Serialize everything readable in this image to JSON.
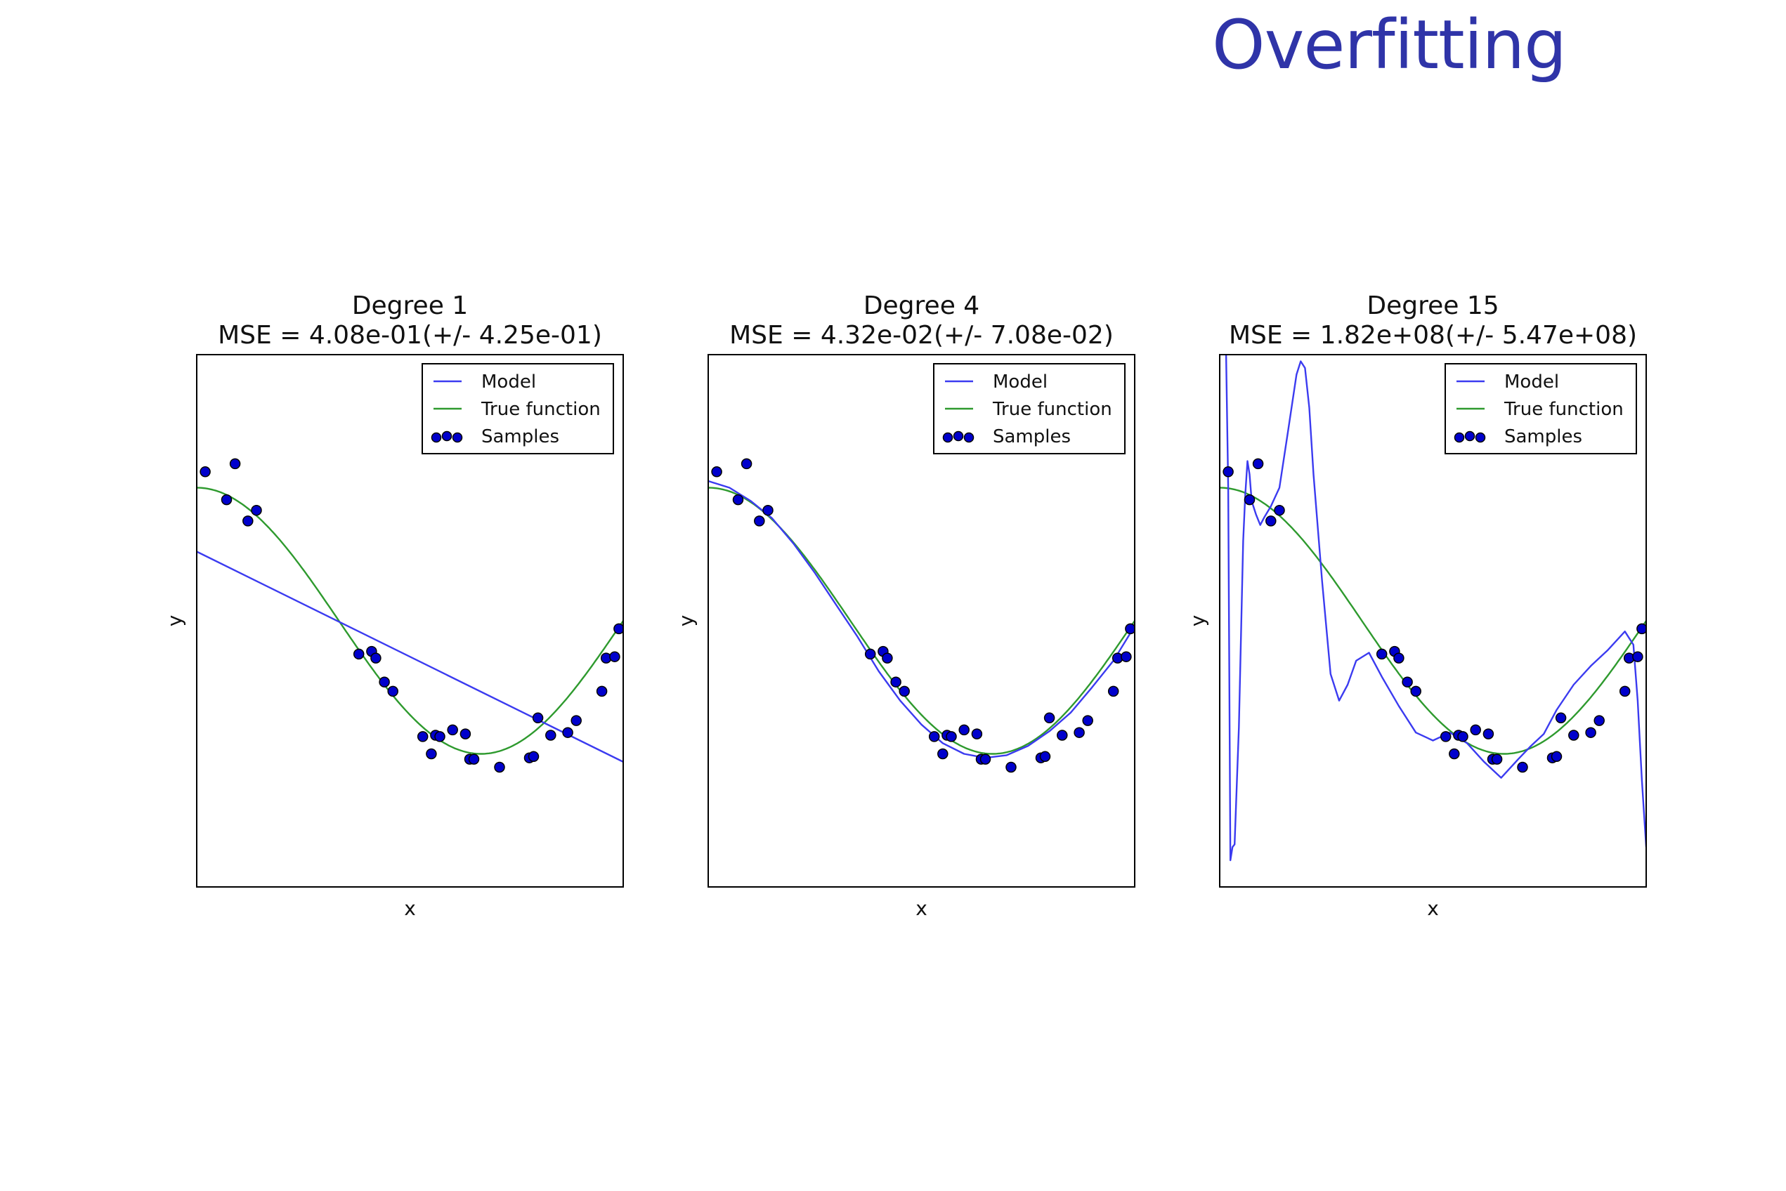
{
  "slide": {
    "title": "Overfitting"
  },
  "colors": {
    "model": "#3b3bf0",
    "true_function": "#2e9a2e",
    "sample_fill": "#0000cc",
    "sample_edge": "#000000",
    "title": "#2f34a8"
  },
  "chart_data": [
    {
      "type": "line",
      "title": "Degree 1",
      "subtitle": "MSE = 4.08e-01(+/- 4.25e-01)",
      "xlabel": "x",
      "ylabel": "y",
      "xlim": [
        0,
        1
      ],
      "ylim": [
        -2,
        2
      ],
      "legend": {
        "placement": "top-right",
        "entries": [
          "Model",
          "True function",
          "Samples"
        ]
      },
      "model": {
        "name": "Model",
        "x": [
          0,
          1
        ],
        "y": [
          0.52,
          -1.06
        ]
      },
      "true_function": {
        "name": "True function",
        "formula": "cos(1.5*pi*x)"
      },
      "samples": {
        "name": "Samples",
        "x": [
          0.02,
          0.07,
          0.09,
          0.12,
          0.14,
          0.38,
          0.41,
          0.42,
          0.44,
          0.46,
          0.53,
          0.55,
          0.56,
          0.57,
          0.6,
          0.63,
          0.64,
          0.65,
          0.71,
          0.78,
          0.79,
          0.8,
          0.83,
          0.87,
          0.89,
          0.95,
          0.96,
          0.98,
          0.99
        ],
        "y": [
          1.12,
          0.91,
          1.18,
          0.75,
          0.83,
          -0.25,
          -0.23,
          -0.28,
          -0.46,
          -0.53,
          -0.87,
          -1.0,
          -0.86,
          -0.87,
          -0.82,
          -0.85,
          -1.04,
          -1.04,
          -1.1,
          -1.03,
          -1.02,
          -0.73,
          -0.86,
          -0.84,
          -0.75,
          -0.53,
          -0.28,
          -0.27,
          -0.06
        ]
      }
    },
    {
      "type": "line",
      "title": "Degree 4",
      "subtitle": "MSE = 4.32e-02(+/- 7.08e-02)",
      "xlabel": "x",
      "ylabel": "y",
      "xlim": [
        0,
        1
      ],
      "ylim": [
        -2,
        2
      ],
      "legend": {
        "placement": "top-right",
        "entries": [
          "Model",
          "True function",
          "Samples"
        ]
      },
      "model": {
        "name": "Model",
        "x": [
          0,
          0.05,
          0.1,
          0.15,
          0.2,
          0.25,
          0.3,
          0.35,
          0.4,
          0.45,
          0.5,
          0.55,
          0.6,
          0.65,
          0.7,
          0.75,
          0.8,
          0.85,
          0.9,
          0.95,
          1.0
        ],
        "y": [
          1.05,
          1.0,
          0.9,
          0.77,
          0.58,
          0.36,
          0.12,
          -0.12,
          -0.38,
          -0.6,
          -0.78,
          -0.92,
          -1.0,
          -1.03,
          -1.01,
          -0.94,
          -0.83,
          -0.69,
          -0.5,
          -0.3,
          -0.04
        ]
      },
      "true_function": {
        "name": "True function",
        "formula": "cos(1.5*pi*x)"
      },
      "samples": {
        "name": "Samples",
        "x": [
          0.02,
          0.07,
          0.09,
          0.12,
          0.14,
          0.38,
          0.41,
          0.42,
          0.44,
          0.46,
          0.53,
          0.55,
          0.56,
          0.57,
          0.6,
          0.63,
          0.64,
          0.65,
          0.71,
          0.78,
          0.79,
          0.8,
          0.83,
          0.87,
          0.89,
          0.95,
          0.96,
          0.98,
          0.99
        ],
        "y": [
          1.12,
          0.91,
          1.18,
          0.75,
          0.83,
          -0.25,
          -0.23,
          -0.28,
          -0.46,
          -0.53,
          -0.87,
          -1.0,
          -0.86,
          -0.87,
          -0.82,
          -0.85,
          -1.04,
          -1.04,
          -1.1,
          -1.03,
          -1.02,
          -0.73,
          -0.86,
          -0.84,
          -0.75,
          -0.53,
          -0.28,
          -0.27,
          -0.06
        ]
      }
    },
    {
      "type": "line",
      "title": "Degree 15",
      "subtitle": "MSE = 1.82e+08(+/- 5.47e+08)",
      "xlabel": "x",
      "ylabel": "y",
      "xlim": [
        0,
        1
      ],
      "ylim": [
        -2,
        2
      ],
      "legend": {
        "placement": "top-right",
        "entries": [
          "Model",
          "True function",
          "Samples"
        ]
      },
      "model": {
        "name": "Model",
        "x": [
          0.015,
          0.02,
          0.025,
          0.03,
          0.035,
          0.045,
          0.055,
          0.06,
          0.065,
          0.07,
          0.075,
          0.085,
          0.095,
          0.105,
          0.12,
          0.14,
          0.16,
          0.18,
          0.19,
          0.2,
          0.21,
          0.22,
          0.24,
          0.26,
          0.28,
          0.3,
          0.32,
          0.35,
          0.38,
          0.42,
          0.46,
          0.5,
          0.54,
          0.58,
          0.62,
          0.66,
          0.7,
          0.73,
          0.76,
          0.79,
          0.83,
          0.87,
          0.91,
          0.95,
          0.97,
          0.98,
          0.99,
          1.0
        ],
        "y": [
          2.0,
          1.0,
          -1.8,
          -1.7,
          -1.68,
          -0.8,
          0.6,
          0.95,
          1.2,
          1.1,
          0.9,
          0.8,
          0.72,
          0.78,
          0.86,
          1.0,
          1.42,
          1.85,
          1.95,
          1.9,
          1.6,
          1.1,
          0.3,
          -0.4,
          -0.6,
          -0.48,
          -0.3,
          -0.24,
          -0.42,
          -0.64,
          -0.84,
          -0.9,
          -0.84,
          -0.92,
          -1.06,
          -1.18,
          -1.04,
          -0.94,
          -0.85,
          -0.67,
          -0.48,
          -0.34,
          -0.22,
          -0.08,
          -0.18,
          -0.6,
          -1.2,
          -1.7
        ]
      },
      "true_function": {
        "name": "True function",
        "formula": "cos(1.5*pi*x)"
      },
      "samples": {
        "name": "Samples",
        "x": [
          0.02,
          0.07,
          0.09,
          0.12,
          0.14,
          0.38,
          0.41,
          0.42,
          0.44,
          0.46,
          0.53,
          0.55,
          0.56,
          0.57,
          0.6,
          0.63,
          0.64,
          0.65,
          0.71,
          0.78,
          0.79,
          0.8,
          0.83,
          0.87,
          0.89,
          0.95,
          0.96,
          0.98,
          0.99
        ],
        "y": [
          1.12,
          0.91,
          1.18,
          0.75,
          0.83,
          -0.25,
          -0.23,
          -0.28,
          -0.46,
          -0.53,
          -0.87,
          -1.0,
          -0.86,
          -0.87,
          -0.82,
          -0.85,
          -1.04,
          -1.04,
          -1.1,
          -1.03,
          -1.02,
          -0.73,
          -0.86,
          -0.84,
          -0.75,
          -0.53,
          -0.28,
          -0.27,
          -0.06
        ]
      }
    }
  ]
}
